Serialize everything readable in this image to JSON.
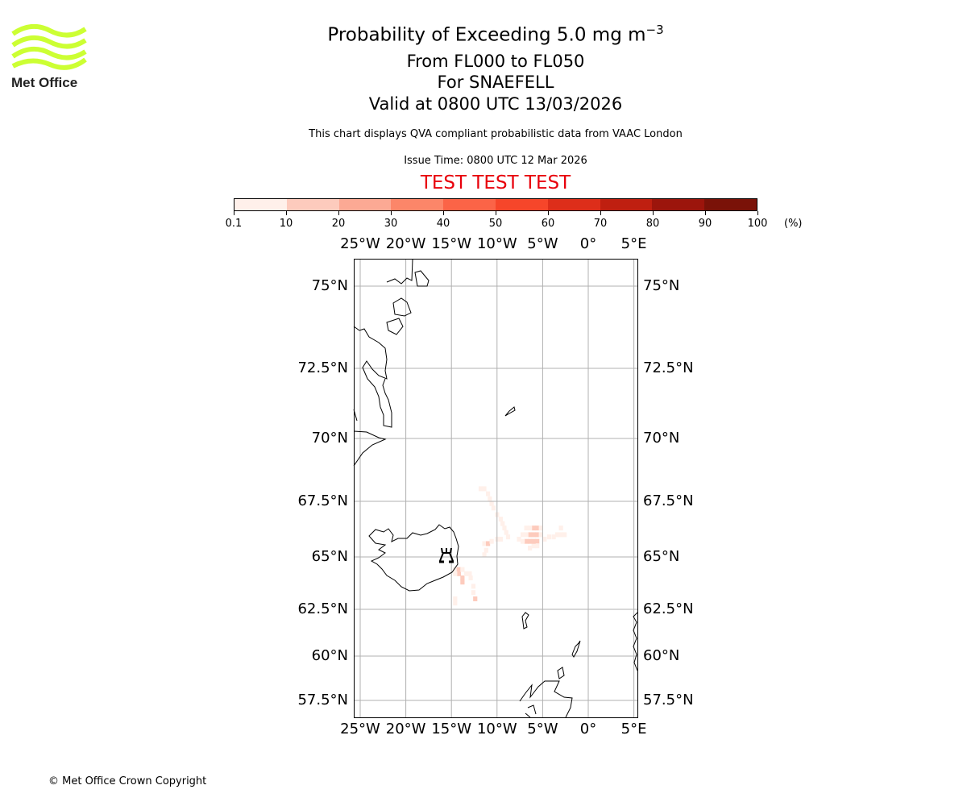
{
  "logo": {
    "text": "Met Office",
    "color": "#ccff33"
  },
  "header": {
    "title": "Probability of Exceeding 5.0 mg m",
    "title_superscript": "−3",
    "levels": "From FL000 to FL050",
    "volcano": "For SNAEFELL",
    "valid": "Valid at 0800 UTC 13/03/2026",
    "description": "This chart displays QVA compliant probabilistic data from VAAC London",
    "issue_time": "Issue Time: 0800 UTC 12 Mar 2026",
    "test_banner": "TEST TEST TEST"
  },
  "colorbar": {
    "ticks": [
      "0.1",
      "10",
      "20",
      "30",
      "40",
      "50",
      "60",
      "70",
      "80",
      "90",
      "100"
    ],
    "unit": "(%)",
    "colors": [
      "#fff0ea",
      "#fdcbbd",
      "#fca994",
      "#fc8669",
      "#fb6447",
      "#f6462a",
      "#dd2e1a",
      "#bf1f10",
      "#9c150c",
      "#7a1208",
      "#5a0e05"
    ]
  },
  "chart_data": {
    "type": "heatmap",
    "lon_ticks": [
      {
        "value": -25,
        "label": "25°W"
      },
      {
        "value": -20,
        "label": "20°W"
      },
      {
        "value": -15,
        "label": "15°W"
      },
      {
        "value": -10,
        "label": "10°W"
      },
      {
        "value": -5,
        "label": "5°W"
      },
      {
        "value": 0,
        "label": "0°"
      },
      {
        "value": 5,
        "label": "5°E"
      }
    ],
    "lat_ticks": [
      {
        "value": 75,
        "label": "75°N"
      },
      {
        "value": 72.5,
        "label": "72.5°N"
      },
      {
        "value": 70,
        "label": "70°N"
      },
      {
        "value": 67.5,
        "label": "67.5°N"
      },
      {
        "value": 65,
        "label": "65°N"
      },
      {
        "value": 62.5,
        "label": "62.5°N"
      },
      {
        "value": 60,
        "label": "60°N"
      },
      {
        "value": 57.5,
        "label": "57.5°N"
      }
    ],
    "volcano": {
      "name": "SNAEFELL",
      "lon": -15.2,
      "lat": 65.0
    },
    "cells_lon_lat_prob": [
      [
        -11.8,
        68.0,
        5
      ],
      [
        -11.4,
        68.0,
        5
      ],
      [
        -11.0,
        67.8,
        5
      ],
      [
        -10.8,
        67.6,
        5
      ],
      [
        -10.6,
        67.4,
        5
      ],
      [
        -10.4,
        67.2,
        5
      ],
      [
        -10.0,
        66.9,
        5
      ],
      [
        -9.6,
        66.7,
        5
      ],
      [
        -9.4,
        66.5,
        5
      ],
      [
        -9.2,
        66.3,
        5
      ],
      [
        -9.0,
        66.1,
        5
      ],
      [
        -8.8,
        65.9,
        5
      ],
      [
        -11.4,
        65.6,
        5
      ],
      [
        -11.0,
        65.6,
        15
      ],
      [
        -10.6,
        65.7,
        5
      ],
      [
        -10.0,
        65.8,
        5
      ],
      [
        -9.6,
        65.8,
        5
      ],
      [
        -11.2,
        65.3,
        5
      ],
      [
        -11.4,
        65.1,
        5
      ],
      [
        -6.0,
        66.3,
        15
      ],
      [
        -5.6,
        66.3,
        15
      ],
      [
        -6.4,
        66.0,
        15
      ],
      [
        -6.0,
        66.0,
        15
      ],
      [
        -5.6,
        66.0,
        15
      ],
      [
        -6.8,
        65.7,
        15
      ],
      [
        -6.4,
        65.7,
        15
      ],
      [
        -5.6,
        65.7,
        15
      ],
      [
        -7.2,
        66.0,
        5
      ],
      [
        -7.6,
        65.8,
        5
      ],
      [
        -7.2,
        65.7,
        5
      ],
      [
        -6.8,
        66.3,
        5
      ],
      [
        -6.4,
        66.3,
        5
      ],
      [
        -5.2,
        66.3,
        5
      ],
      [
        -5.2,
        66.0,
        5
      ],
      [
        -4.8,
        65.8,
        5
      ],
      [
        -6.0,
        65.5,
        5
      ],
      [
        -6.4,
        65.4,
        5
      ],
      [
        -5.6,
        65.5,
        5
      ],
      [
        -3.8,
        65.9,
        5
      ],
      [
        -3.4,
        66.0,
        5
      ],
      [
        -3.0,
        66.0,
        5
      ],
      [
        -2.6,
        66.0,
        5
      ],
      [
        -3.0,
        66.3,
        5
      ],
      [
        -4.3,
        65.9,
        5
      ],
      [
        -6.8,
        66.0,
        5
      ],
      [
        -6.0,
        65.7,
        15
      ],
      [
        -14.6,
        64.4,
        5
      ],
      [
        -14.2,
        64.4,
        15
      ],
      [
        -14.2,
        64.2,
        15
      ],
      [
        -13.8,
        64.4,
        5
      ],
      [
        -14.6,
        64.2,
        5
      ],
      [
        -13.8,
        64.0,
        15
      ],
      [
        -13.8,
        63.8,
        15
      ],
      [
        -13.4,
        64.2,
        5
      ],
      [
        -13.0,
        64.2,
        5
      ],
      [
        -12.9,
        64.0,
        5
      ],
      [
        -12.6,
        63.6,
        5
      ],
      [
        -12.6,
        63.3,
        5
      ],
      [
        -12.4,
        63.0,
        15
      ],
      [
        -14.6,
        62.8,
        5
      ],
      [
        -14.6,
        63.0,
        5
      ]
    ]
  },
  "footer": {
    "copyright": "© Met Office Crown Copyright"
  }
}
